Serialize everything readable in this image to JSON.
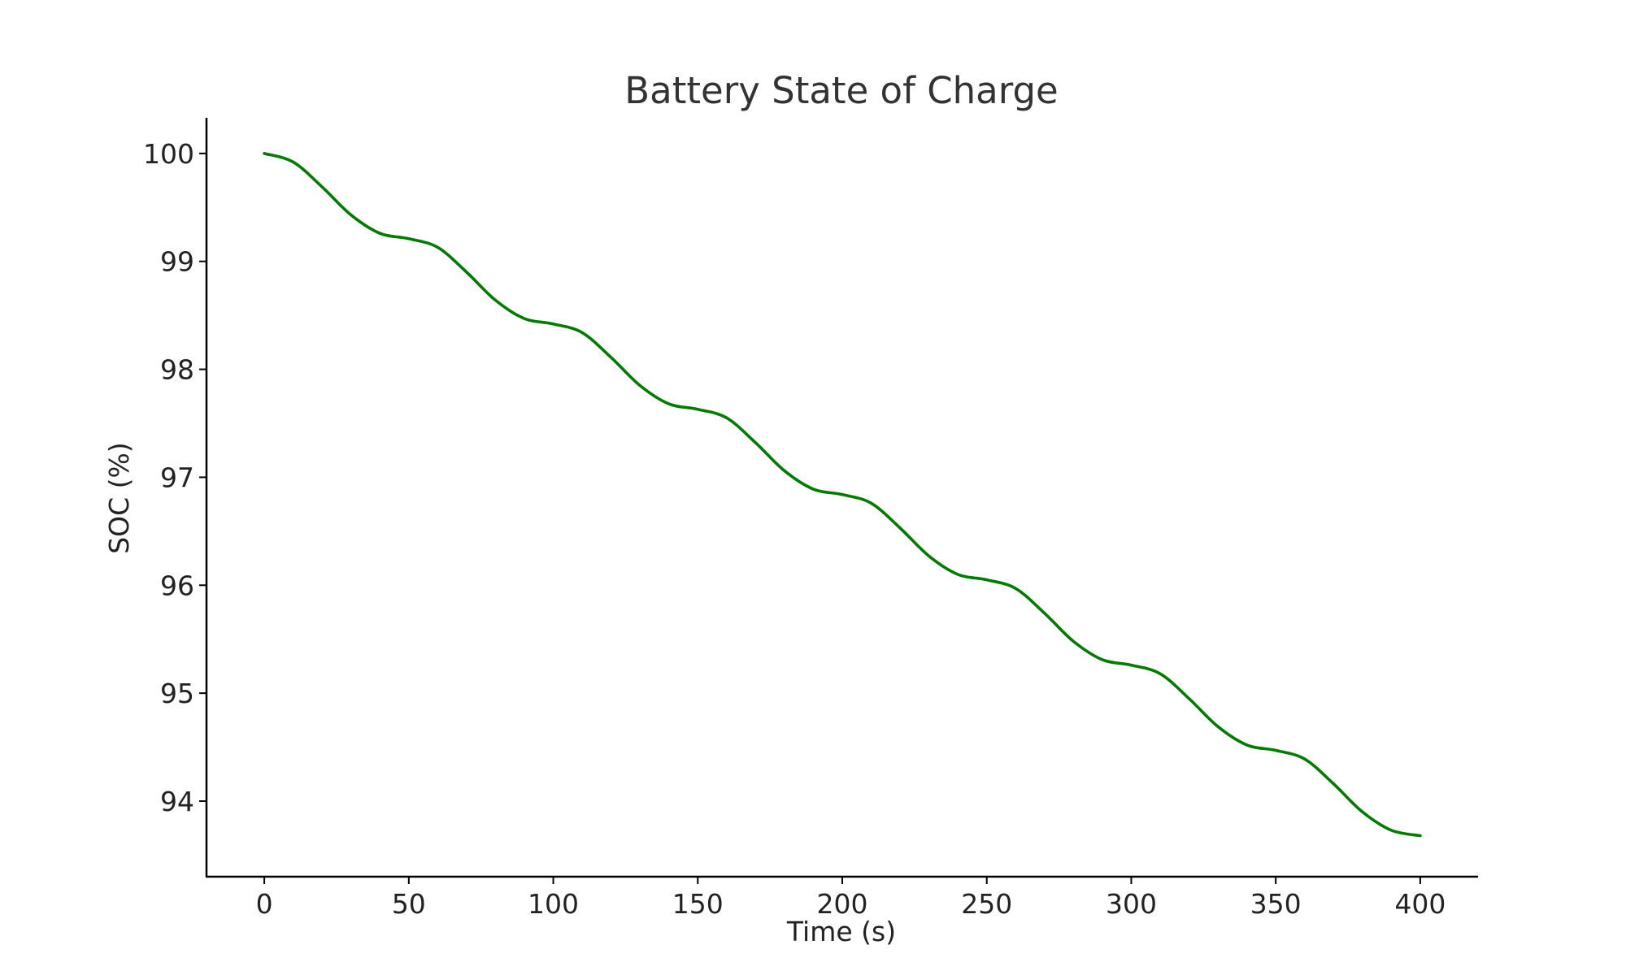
{
  "chart_data": {
    "type": "line",
    "title": "Battery State of Charge",
    "xlabel": "Time (s)",
    "ylabel": "SOC (%)",
    "xlim": [
      -20,
      420
    ],
    "ylim": [
      93.3,
      100.33
    ],
    "xticks": [
      0,
      50,
      100,
      150,
      200,
      250,
      300,
      350,
      400
    ],
    "xtick_labels": [
      "0",
      "50",
      "100",
      "150",
      "200",
      "250",
      "300",
      "350",
      "400"
    ],
    "yticks": [
      94,
      95,
      96,
      97,
      98,
      99,
      100
    ],
    "ytick_labels": [
      "94",
      "95",
      "96",
      "97",
      "98",
      "99",
      "100"
    ],
    "grid": false,
    "legend": "none",
    "series": [
      {
        "color": "#007a00",
        "x": [
          0,
          10,
          20,
          30,
          40,
          50,
          60,
          70,
          80,
          90,
          100,
          110,
          120,
          130,
          140,
          150,
          160,
          170,
          180,
          190,
          200,
          210,
          220,
          230,
          240,
          250,
          260,
          270,
          280,
          290,
          300,
          310,
          320,
          330,
          340,
          350,
          360,
          370,
          380,
          390,
          400
        ],
        "y": [
          100.0,
          99.92,
          99.69,
          99.43,
          99.26,
          99.21,
          99.13,
          98.9,
          98.64,
          98.47,
          98.42,
          98.34,
          98.11,
          97.85,
          97.68,
          97.63,
          97.55,
          97.32,
          97.06,
          96.89,
          96.84,
          96.76,
          96.53,
          96.27,
          96.1,
          96.05,
          95.97,
          95.74,
          95.48,
          95.31,
          95.26,
          95.18,
          94.95,
          94.69,
          94.52,
          94.47,
          94.39,
          94.16,
          93.9,
          93.73,
          93.68
        ]
      }
    ]
  }
}
